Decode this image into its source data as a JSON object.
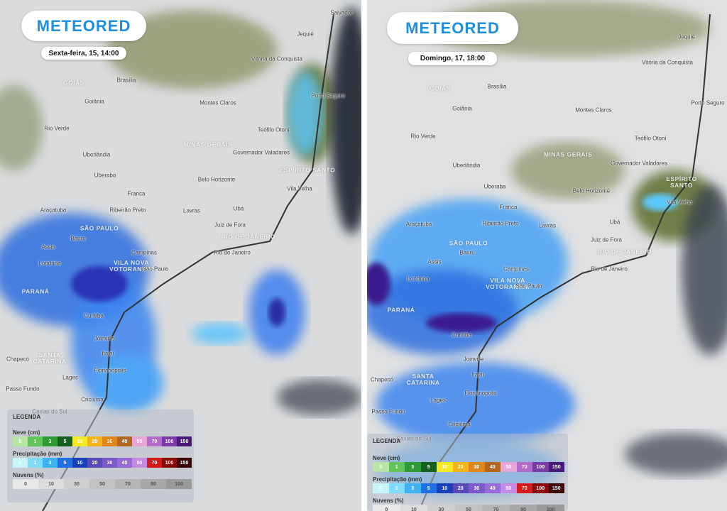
{
  "panels": [
    {
      "logo": "METEORED",
      "date": "Sexta-feira, 15, 14:00",
      "cities": [
        "Salvador",
        "Jequié",
        "Vitória da Conquista",
        "Porto Seguro",
        "Brasília",
        "Goiânia",
        "Montes Claros",
        "Rio Verde",
        "Teófilo Otoni",
        "Governador Valadares",
        "Uberlândia",
        "Uberaba",
        "Belo Horizonte",
        "Vila Velha",
        "Franca",
        "Ribeirão Preto",
        "Lavras",
        "Ubá",
        "Araçatuba",
        "Juiz de Fora",
        "Bauru",
        "Assis",
        "Campinas",
        "Rio de Janeiro",
        "Londrina",
        "São Paulo",
        "Curitiba",
        "Joinville",
        "Itajaí",
        "Florianópolis",
        "Chapecó",
        "Lages",
        "Passo Fundo",
        "Criciúma",
        "Caxias do Sul"
      ],
      "states": [
        "GOIÁS",
        "MINAS GERAIS",
        "ESPÍRITO SANTO",
        "SÃO PAULO",
        "RIO DE JANEIRO",
        "VILA NOVA VOTORANTIM",
        "PARANÁ",
        "SANTA CATARINA"
      ]
    },
    {
      "logo": "METEORED",
      "date": "Domingo, 17, 18:00",
      "cities": [
        "Jequié",
        "Vitória da Conquista",
        "Porto Seguro",
        "Brasília",
        "Goiânia",
        "Montes Claros",
        "Rio Verde",
        "Teófilo Otoni",
        "Governador Valadares",
        "Uberlândia",
        "Uberaba",
        "Belo Horizonte",
        "Vila Velha",
        "Franca",
        "Ribeirão Preto",
        "Lavras",
        "Ubá",
        "Araçatuba",
        "Juiz de Fora",
        "Bauru",
        "Assis",
        "Campinas",
        "Rio de Janeiro",
        "Londrina",
        "São Paulo",
        "Curitiba",
        "Joinville",
        "Itajaí",
        "Florianópolis",
        "Chapecó",
        "Lages",
        "Passo Fundo",
        "Criciúma",
        "Caxias do Sul"
      ],
      "states": [
        "GOIÁS",
        "MINAS GERAIS",
        "ESPÍRITO SANTO",
        "SÃO PAULO",
        "RIO DE JANEIRO",
        "VILA NOVA VOTORANTIM",
        "PARANÁ",
        "SANTA CATARINA"
      ]
    }
  ],
  "legend": {
    "title": "LEGENDA",
    "snow": {
      "label": "Neve (cm)",
      "values": [
        "0",
        "1",
        "3",
        "5",
        "10",
        "20",
        "30",
        "40",
        "50",
        "70",
        "100",
        "150"
      ]
    },
    "rain": {
      "label": "Precipitação (mm)",
      "values": [
        "0",
        "1",
        "3",
        "5",
        "10",
        "20",
        "30",
        "40",
        "50",
        "70",
        "100",
        "150"
      ]
    },
    "clouds": {
      "label": "Nuvens (%)",
      "values": [
        "0",
        "10",
        "30",
        "50",
        "70",
        "90",
        "100"
      ]
    }
  }
}
